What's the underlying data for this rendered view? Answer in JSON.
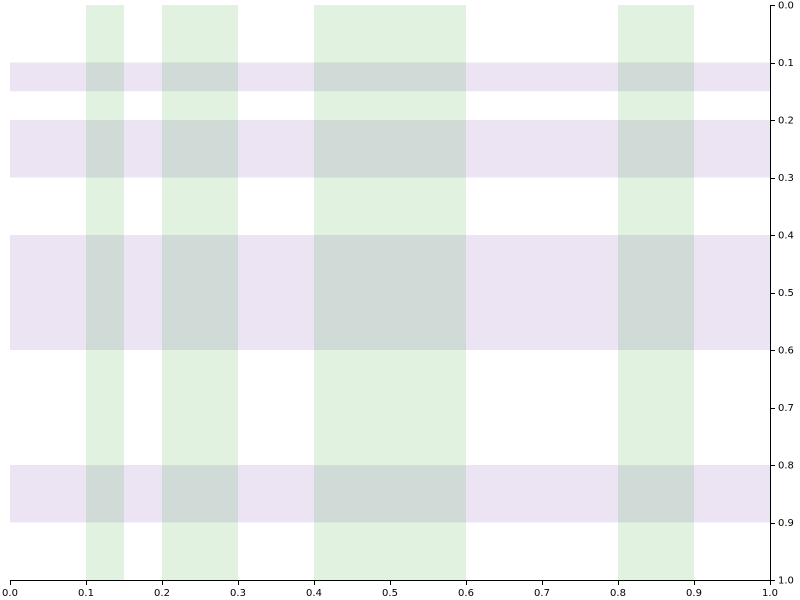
{
  "chart_data": {
    "type": "band-overlay",
    "title": "",
    "xlabel": "",
    "ylabel": "",
    "xlim": [
      0,
      1
    ],
    "ylim": [
      0,
      1
    ],
    "y_inverted": true,
    "y_axis_side": "right",
    "grid": false,
    "x_ticks": [
      "0.0",
      "0.1",
      "0.2",
      "0.3",
      "0.4",
      "0.5",
      "0.6",
      "0.7",
      "0.8",
      "0.9",
      "1.0"
    ],
    "y_ticks": [
      "0.0",
      "0.1",
      "0.2",
      "0.3",
      "0.4",
      "0.5",
      "0.6",
      "0.7",
      "0.8",
      "0.9",
      "1.0"
    ],
    "vertical_bands": {
      "color": "#2ca02c",
      "opacity": 0.14,
      "ranges": [
        [
          0.1,
          0.15
        ],
        [
          0.2,
          0.3
        ],
        [
          0.4,
          0.6
        ],
        [
          0.8,
          0.9
        ]
      ]
    },
    "horizontal_bands": {
      "color": "#9467bd",
      "opacity": 0.18,
      "ranges": [
        [
          0.1,
          0.15
        ],
        [
          0.2,
          0.3
        ],
        [
          0.4,
          0.6
        ],
        [
          0.8,
          0.9
        ]
      ]
    }
  }
}
